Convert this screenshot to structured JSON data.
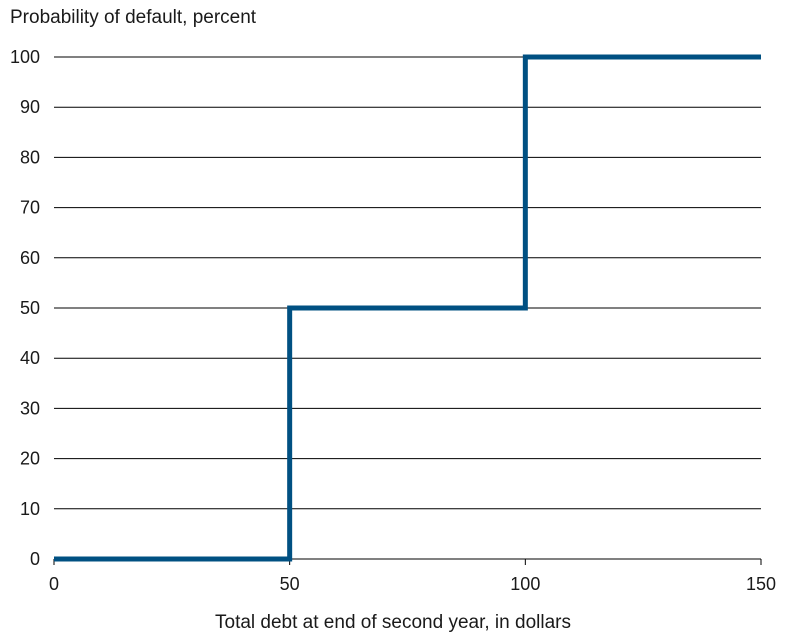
{
  "chart_data": {
    "type": "line",
    "step": true,
    "ylabel": "Probability of default, percent",
    "xlabel": "Total debt at end of second year, in dollars",
    "xlim": [
      0,
      150
    ],
    "ylim": [
      0,
      100
    ],
    "xticks": [
      0,
      50,
      100,
      150
    ],
    "yticks": [
      0,
      10,
      20,
      30,
      40,
      50,
      60,
      70,
      80,
      90,
      100
    ],
    "grid": "horizontal",
    "series": [
      {
        "color": "#005082",
        "x": [
          0,
          50,
          50,
          100,
          100,
          150
        ],
        "y": [
          0,
          0,
          50,
          50,
          100,
          100
        ]
      }
    ]
  }
}
